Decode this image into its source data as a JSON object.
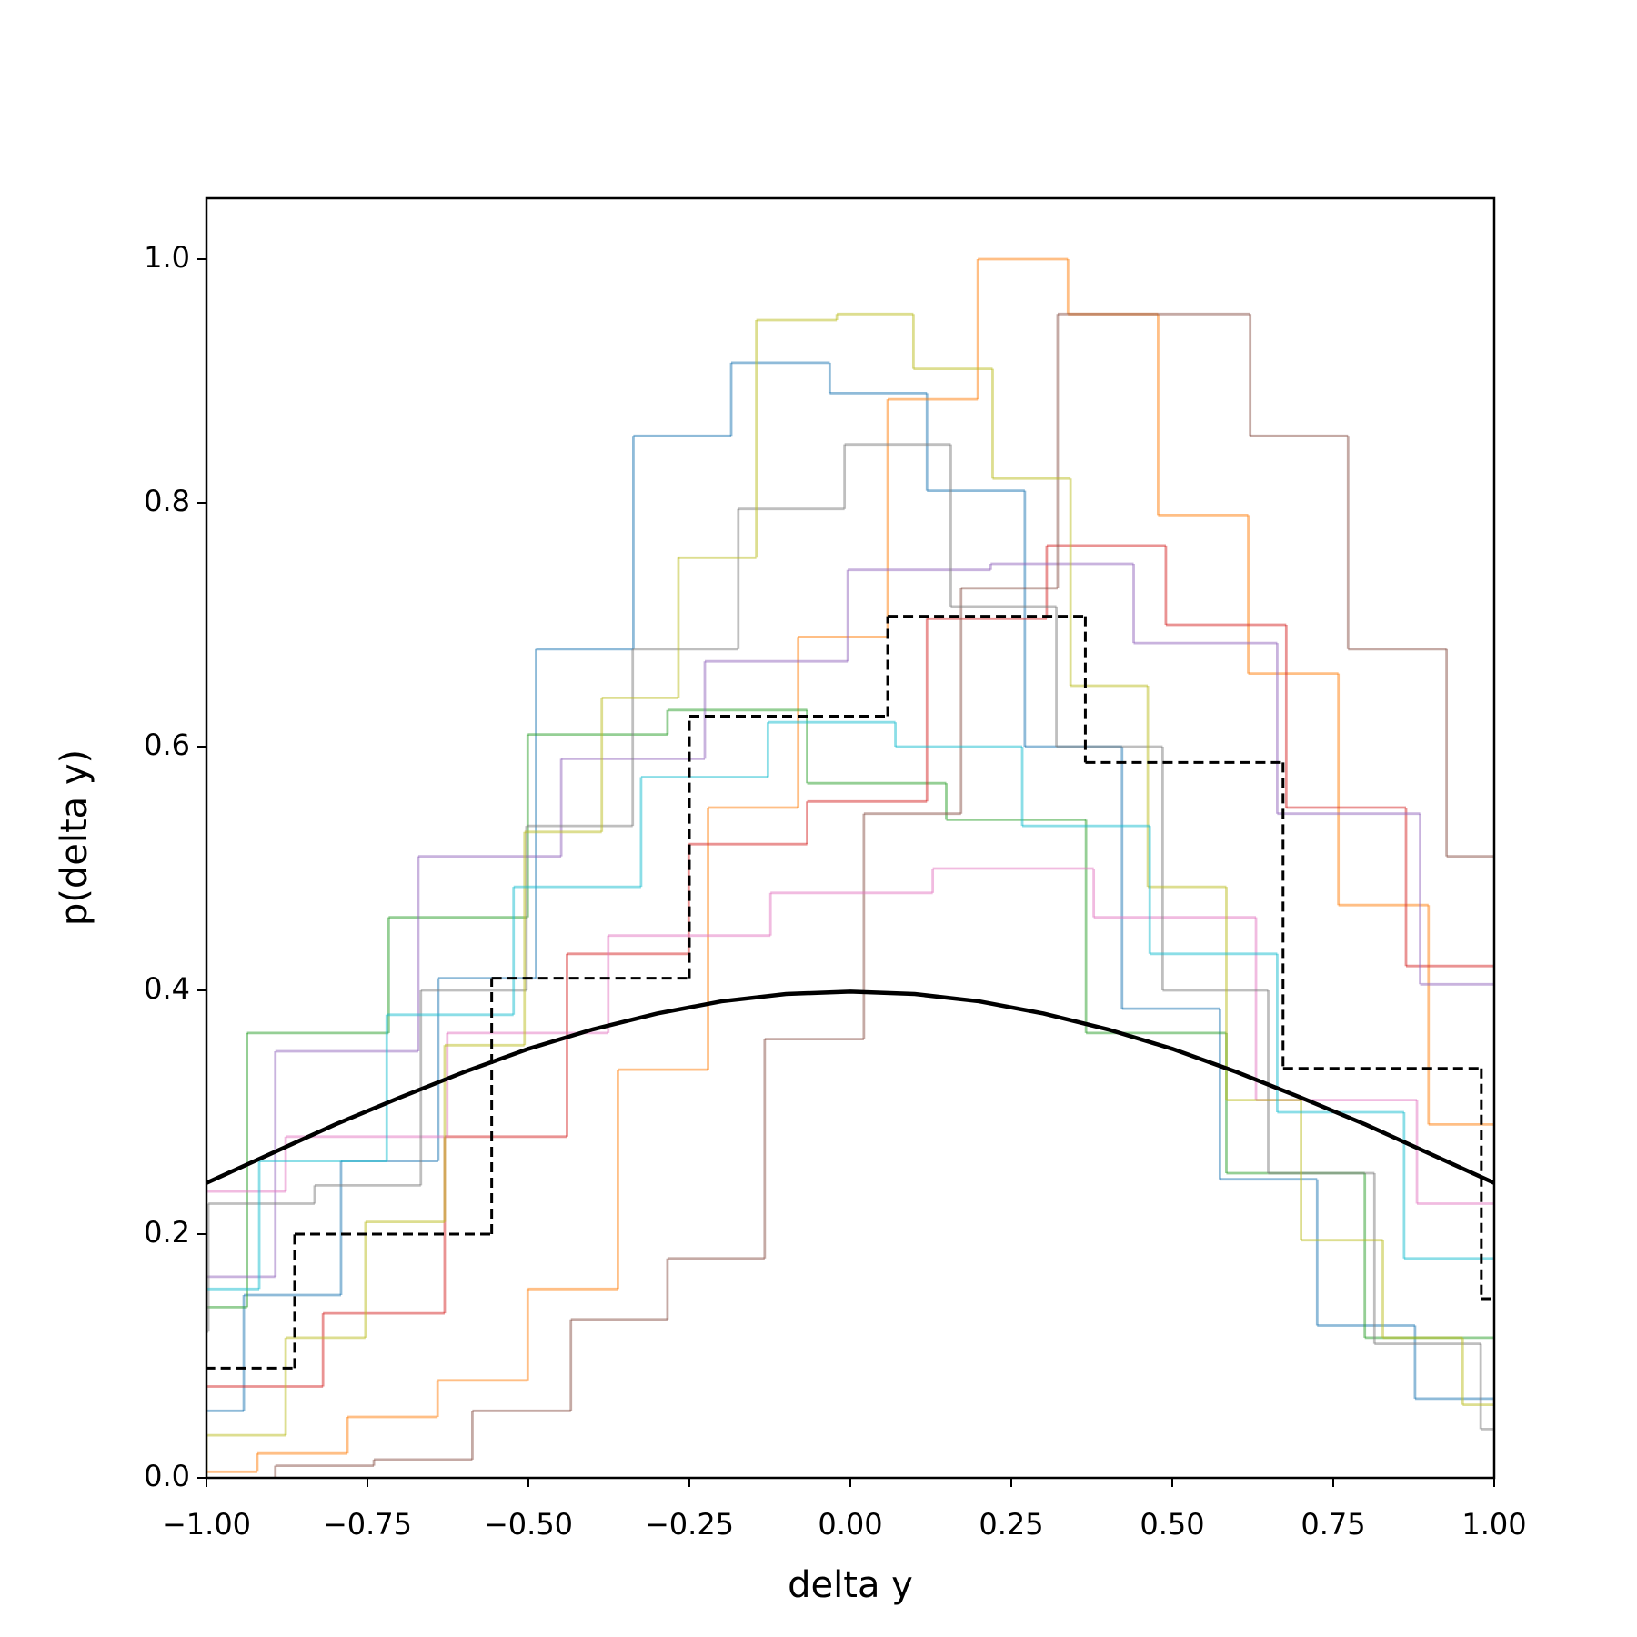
{
  "chart_data": {
    "type": "histogram",
    "xlabel": "delta y",
    "ylabel": "p(delta y)",
    "xlim": [
      -1,
      1
    ],
    "ylim": [
      0,
      1.05
    ],
    "xticks": [
      {
        "value": -1,
        "label": "−1.00"
      },
      {
        "value": -0.75,
        "label": "−0.75"
      },
      {
        "value": -0.5,
        "label": "−0.50"
      },
      {
        "value": -0.25,
        "label": "−0.25"
      },
      {
        "value": 0,
        "label": "0.00"
      },
      0.25,
      {
        "value": 0.5,
        "label": "0.50"
      },
      0.75,
      {
        "value": 1,
        "label": "1.00"
      }
    ],
    "yticks": [
      {
        "value": 0,
        "label": "0.0"
      },
      0.2,
      0.4,
      0.6,
      0.8,
      {
        "value": 1,
        "label": "1.0"
      }
    ],
    "series": [
      {
        "type": "histogram",
        "color": "#1f77b4",
        "alpha": 0.5,
        "bins": [
          -1.094,
          -0.942,
          -0.791,
          -0.64,
          -0.488,
          -0.337,
          -0.185,
          -0.032,
          0.119,
          0.271,
          0.422,
          0.574,
          0.725,
          0.877,
          1.028
        ],
        "values": [
          0.055,
          0.15,
          0.26,
          0.41,
          0.68,
          0.855,
          0.915,
          0.89,
          0.81,
          0.6,
          0.385,
          0.245,
          0.125,
          0.065
        ]
      },
      {
        "type": "histogram",
        "color": "#ff7f0e",
        "alpha": 0.5,
        "bins": [
          -1.061,
          -0.921,
          -0.781,
          -0.641,
          -0.501,
          -0.361,
          -0.221,
          -0.081,
          0.058,
          0.198,
          0.338,
          0.478,
          0.618,
          0.758,
          0.898,
          1.038
        ],
        "values": [
          0.005,
          0.02,
          0.05,
          0.08,
          0.155,
          0.335,
          0.55,
          0.69,
          0.885,
          1.0,
          0.955,
          0.79,
          0.66,
          0.47,
          0.29
        ]
      },
      {
        "type": "histogram",
        "color": "#2ca02c",
        "alpha": 0.5,
        "bins": [
          -1.155,
          -0.937,
          -0.717,
          -0.501,
          -0.284,
          -0.067,
          0.149,
          0.366,
          0.584,
          0.799,
          1.016
        ],
        "values": [
          0.14,
          0.365,
          0.46,
          0.61,
          0.63,
          0.57,
          0.54,
          0.365,
          0.25,
          0.115
        ]
      },
      {
        "type": "histogram",
        "color": "#d62728",
        "alpha": 0.5,
        "bins": [
          -1.005,
          -0.819,
          -0.63,
          -0.44,
          -0.251,
          -0.067,
          0.119,
          0.305,
          0.49,
          0.677,
          0.863,
          1.049
        ],
        "values": [
          0.075,
          0.135,
          0.28,
          0.43,
          0.52,
          0.555,
          0.705,
          0.765,
          0.7,
          0.55,
          0.42
        ]
      },
      {
        "type": "histogram",
        "color": "#9467bd",
        "alpha": 0.5,
        "bins": [
          -1.115,
          -0.893,
          -0.671,
          -0.449,
          -0.226,
          -0.004,
          0.218,
          0.44,
          0.663,
          0.885,
          1.107
        ],
        "values": [
          0.165,
          0.35,
          0.51,
          0.59,
          0.67,
          0.745,
          0.75,
          0.685,
          0.545,
          0.405
        ]
      },
      {
        "type": "histogram",
        "color": "#8c564b",
        "alpha": 0.5,
        "bins": [
          -0.893,
          -0.74,
          -0.587,
          -0.434,
          -0.284,
          -0.133,
          0.021,
          0.172,
          0.322,
          0.473,
          0.621,
          0.773,
          0.926,
          1.077
        ],
        "values": [
          0.01,
          0.015,
          0.055,
          0.13,
          0.18,
          0.36,
          0.545,
          0.73,
          0.955,
          0.955,
          0.855,
          0.68,
          0.51
        ]
      },
      {
        "type": "histogram",
        "color": "#e377c2",
        "alpha": 0.5,
        "bins": [
          -1.127,
          -0.877,
          -0.626,
          -0.376,
          -0.124,
          0.128,
          0.378,
          0.63,
          0.88,
          1.132
        ],
        "values": [
          0.235,
          0.28,
          0.365,
          0.445,
          0.48,
          0.5,
          0.46,
          0.31,
          0.225
        ]
      },
      {
        "type": "histogram",
        "color": "#7f7f7f",
        "alpha": 0.5,
        "bins": [
          -1.161,
          -0.997,
          -0.832,
          -0.667,
          -0.503,
          -0.338,
          -0.174,
          -0.009,
          0.156,
          0.32,
          0.485,
          0.649,
          0.814,
          0.979,
          1.143
        ],
        "values": [
          0.12,
          0.225,
          0.24,
          0.4,
          0.535,
          0.68,
          0.795,
          0.848,
          0.715,
          0.6,
          0.4,
          0.25,
          0.11,
          0.04
        ]
      },
      {
        "type": "histogram",
        "color": "#bcbd22",
        "alpha": 0.5,
        "bins": [
          -1.0,
          -0.877,
          -0.753,
          -0.63,
          -0.506,
          -0.386,
          -0.267,
          -0.146,
          -0.021,
          0.098,
          0.221,
          0.342,
          0.462,
          0.584,
          0.7,
          0.827,
          0.951,
          1.071
        ],
        "values": [
          0.035,
          0.115,
          0.21,
          0.355,
          0.53,
          0.64,
          0.755,
          0.95,
          0.955,
          0.91,
          0.82,
          0.65,
          0.485,
          0.31,
          0.195,
          0.115,
          0.06
        ]
      },
      {
        "type": "histogram",
        "color": "#17becf",
        "alpha": 0.5,
        "bins": [
          -1.115,
          -0.918,
          -0.72,
          -0.523,
          -0.325,
          -0.128,
          0.07,
          0.267,
          0.465,
          0.663,
          0.86,
          1.058
        ],
        "values": [
          0.155,
          0.26,
          0.38,
          0.485,
          0.575,
          0.62,
          0.6,
          0.535,
          0.43,
          0.3,
          0.18
        ]
      },
      {
        "type": "histogram",
        "color": "#000000",
        "alpha": 1,
        "linestyle": "dashed",
        "bins": [
          -1.17,
          -0.863,
          -0.557,
          -0.25,
          0.058,
          0.365,
          0.672,
          0.98,
          1.287
        ],
        "values": [
          0.09,
          0.2,
          0.41,
          0.625,
          0.707,
          0.587,
          0.336,
          0.147
        ]
      },
      {
        "type": "line",
        "color": "#000000",
        "alpha": 1,
        "x": [
          -1,
          -0.9,
          -0.8,
          -0.7,
          -0.6,
          -0.5,
          -0.4,
          -0.3,
          -0.2,
          -0.1,
          0,
          0.1,
          0.2,
          0.3,
          0.4,
          0.5,
          0.6,
          0.7,
          0.8,
          0.9,
          1
        ],
        "values": [
          0.242,
          0.266,
          0.29,
          0.312,
          0.333,
          0.352,
          0.368,
          0.381,
          0.391,
          0.397,
          0.399,
          0.397,
          0.391,
          0.381,
          0.368,
          0.352,
          0.333,
          0.312,
          0.29,
          0.266,
          0.242
        ]
      }
    ]
  }
}
